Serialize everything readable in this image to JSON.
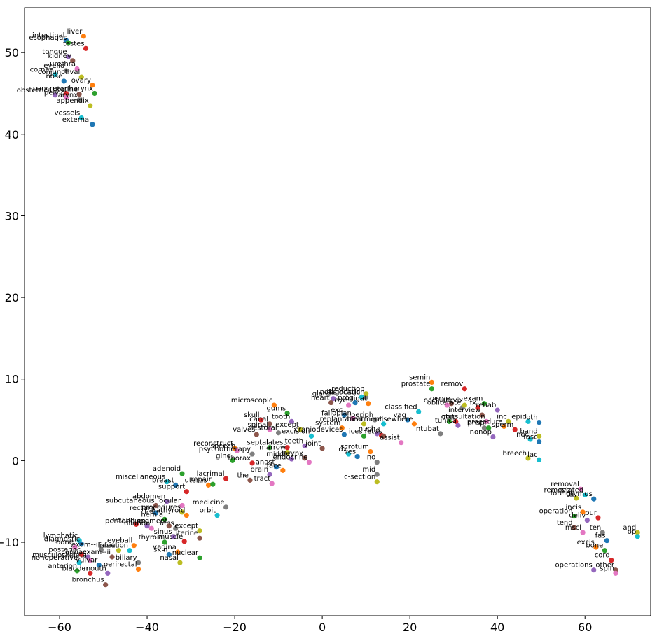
{
  "chart_data": {
    "type": "scatter",
    "title": "",
    "xlabel": "",
    "ylabel": "",
    "xlim": [
      -68,
      75
    ],
    "ylim": [
      -19,
      55.5
    ],
    "xticks": [
      -60,
      -40,
      -20,
      0,
      20,
      40,
      60
    ],
    "yticks": [
      -10,
      0,
      10,
      20,
      30,
      40,
      50
    ],
    "xtick_labels": [
      "−60",
      "−40",
      "−20",
      "0",
      "20",
      "40",
      "60"
    ],
    "ytick_labels": [
      "−10",
      "0",
      "10",
      "20",
      "30",
      "40",
      "50"
    ],
    "grid": false,
    "palette": [
      "#1f77b4",
      "#ff7f0e",
      "#2ca02c",
      "#d62728",
      "#9467bd",
      "#8c564b",
      "#e377c2",
      "#7f7f7f",
      "#bcbd22",
      "#17becf"
    ],
    "points": [
      {
        "label": "intestinal",
        "x": -58.5,
        "y": 51.5
      },
      {
        "label": "liver",
        "x": -54.5,
        "y": 52.0
      },
      {
        "label": "esophagus",
        "x": -58.0,
        "y": 51.2
      },
      {
        "label": "testes",
        "x": -54.0,
        "y": 50.5
      },
      {
        "label": "tongue",
        "x": -58.0,
        "y": 49.5
      },
      {
        "label": "kidney",
        "x": -57.0,
        "y": 49.0
      },
      {
        "label": "urethra",
        "x": -56.0,
        "y": 48.0
      },
      {
        "label": "eyelid",
        "x": -58.5,
        "y": 47.8
      },
      {
        "label": "conjunctival",
        "x": -55.0,
        "y": 47.0
      },
      {
        "label": "cornea",
        "x": -61.0,
        "y": 47.3
      },
      {
        "label": "nose",
        "x": -59.0,
        "y": 46.5
      },
      {
        "label": "ovary",
        "x": -52.5,
        "y": 46.0
      },
      {
        "label": "pharynx",
        "x": -52.0,
        "y": 45.0
      },
      {
        "label": "pancreas",
        "x": -58.5,
        "y": 45.0
      },
      {
        "label": "obstetrical",
        "x": -61.0,
        "y": 44.8
      },
      {
        "label": "uterine",
        "x": -55.5,
        "y": 44.9
      },
      {
        "label": "pelvic",
        "x": -58.5,
        "y": 44.5
      },
      {
        "label": "larynx",
        "x": -55.5,
        "y": 44.2
      },
      {
        "label": "appendix",
        "x": -53.0,
        "y": 43.5
      },
      {
        "label": "vessels",
        "x": -55.0,
        "y": 42.0
      },
      {
        "label": "external",
        "x": -52.5,
        "y": 41.2
      },
      {
        "label": "semin",
        "x": 25.0,
        "y": 9.6
      },
      {
        "label": "prostate",
        "x": 25.0,
        "y": 8.8
      },
      {
        "label": "remov",
        "x": 32.5,
        "y": 8.8
      },
      {
        "label": "gland",
        "x": 2.5,
        "y": 7.6
      },
      {
        "label": "heart",
        "x": 2.0,
        "y": 7.1
      },
      {
        "label": "eye",
        "x": 6.0,
        "y": 6.8
      },
      {
        "label": "dislocation",
        "x": 10.0,
        "y": 7.8
      },
      {
        "label": "reduction",
        "x": 10.0,
        "y": 8.2
      },
      {
        "label": "ndiagnostic",
        "x": 9.0,
        "y": 7.8
      },
      {
        "label": "prog",
        "x": 7.5,
        "y": 7.1
      },
      {
        "label": "irrigat",
        "x": 10.5,
        "y": 7.0
      },
      {
        "label": "exam",
        "x": 37.0,
        "y": 7.0
      },
      {
        "label": "fx",
        "x": 35.5,
        "y": 6.5
      },
      {
        "label": "rehab",
        "x": 40.0,
        "y": 6.2
      },
      {
        "label": "nerve",
        "x": 29.5,
        "y": 7.0
      },
      {
        "label": "occlus",
        "x": 28.5,
        "y": 6.8
      },
      {
        "label": "obliterate",
        "x": 32.0,
        "y": 6.5
      },
      {
        "label": "cervix",
        "x": 32.5,
        "y": 6.8
      },
      {
        "label": "classified",
        "x": 22.0,
        "y": 6.0
      },
      {
        "label": "exc",
        "x": 5.0,
        "y": 5.6
      },
      {
        "label": "microscopic",
        "x": -11.0,
        "y": 6.8
      },
      {
        "label": "gums",
        "x": -8.0,
        "y": 5.8
      },
      {
        "label": "skull",
        "x": -14.0,
        "y": 5.0
      },
      {
        "label": "tooth",
        "x": -7.0,
        "y": 4.8
      },
      {
        "label": "canal",
        "x": -12.0,
        "y": 4.5
      },
      {
        "label": "fallopian",
        "x": 7.0,
        "y": 5.2
      },
      {
        "label": "periph",
        "x": 12.0,
        "y": 5.0
      },
      {
        "label": "replantation",
        "x": 9.5,
        "y": 4.5
      },
      {
        "label": "treatment",
        "x": 14.0,
        "y": 4.5
      },
      {
        "label": "vag",
        "x": 19.5,
        "y": 5.0
      },
      {
        "label": "elsewhere",
        "x": 21.0,
        "y": 4.5
      },
      {
        "label": "of",
        "x": 29.0,
        "y": 4.8
      },
      {
        "label": "pt",
        "x": 30.5,
        "y": 4.8
      },
      {
        "label": "tunica",
        "x": 31.0,
        "y": 4.3
      },
      {
        "label": "interview",
        "x": 36.5,
        "y": 5.6
      },
      {
        "label": "consultation",
        "x": 37.5,
        "y": 4.8
      },
      {
        "label": "proc",
        "x": 37.0,
        "y": 4.0
      },
      {
        "label": "inc",
        "x": 42.5,
        "y": 4.8
      },
      {
        "label": "epid",
        "x": 47.0,
        "y": 4.8
      },
      {
        "label": "oth",
        "x": 49.5,
        "y": 4.7
      },
      {
        "label": "procedure",
        "x": 41.5,
        "y": 4.2
      },
      {
        "label": "spr",
        "x": 38.0,
        "y": 4.0
      },
      {
        "label": "sperm",
        "x": 44.0,
        "y": 3.8
      },
      {
        "label": "nonop",
        "x": 39.0,
        "y": 2.9
      },
      {
        "label": "valves",
        "x": -15.0,
        "y": 3.2
      },
      {
        "label": "spinal",
        "x": -12.0,
        "y": 3.8
      },
      {
        "label": "restoral",
        "x": -10.0,
        "y": 3.4
      },
      {
        "label": "except",
        "x": -5.0,
        "y": 3.8
      },
      {
        "label": "excision",
        "x": -2.5,
        "y": 3.0
      },
      {
        "label": "craniodevices",
        "x": 5.0,
        "y": 3.2
      },
      {
        "label": "system",
        "x": 4.5,
        "y": 4.0
      },
      {
        "label": "ices",
        "x": 9.5,
        "y": 3.0
      },
      {
        "label": "field",
        "x": 13.5,
        "y": 3.1
      },
      {
        "label": "nuch",
        "x": 12.5,
        "y": 3.3
      },
      {
        "label": "fetus",
        "x": 14.0,
        "y": 3.0
      },
      {
        "label": "assist",
        "x": 18.0,
        "y": 2.2
      },
      {
        "label": "intubat",
        "x": 27.0,
        "y": 3.3
      },
      {
        "label": "band",
        "x": 49.5,
        "y": 3.0
      },
      {
        "label": "nec",
        "x": 47.5,
        "y": 2.6
      },
      {
        "label": "fasc",
        "x": 49.5,
        "y": 2.3
      },
      {
        "label": "reconstruct",
        "x": -20.0,
        "y": 1.5
      },
      {
        "label": "septal",
        "x": -12.0,
        "y": 1.6
      },
      {
        "label": "latest",
        "x": -8.0,
        "y": 1.6
      },
      {
        "label": "teeth",
        "x": -4.0,
        "y": 1.8
      },
      {
        "label": "joint",
        "x": 0.0,
        "y": 1.5
      },
      {
        "label": "speech",
        "x": -19.5,
        "y": 1.2
      },
      {
        "label": "psychotherapy",
        "x": -16.0,
        "y": 0.8
      },
      {
        "label": "marrow",
        "x": -8.0,
        "y": 1.0
      },
      {
        "label": "dx",
        "x": 6.0,
        "y": 0.8
      },
      {
        "label": "ves",
        "x": 8.0,
        "y": 0.5
      },
      {
        "label": "scrotum",
        "x": 11.0,
        "y": 1.1
      },
      {
        "label": "glnd",
        "x": -20.5,
        "y": 0.0
      },
      {
        "label": "thorax",
        "x": -16.0,
        "y": -0.3
      },
      {
        "label": "middle",
        "x": -7.0,
        "y": 0.2
      },
      {
        "label": "larynx",
        "x": -4.0,
        "y": 0.3
      },
      {
        "label": "endocrine",
        "x": -3.0,
        "y": -0.2
      },
      {
        "label": "no",
        "x": 12.5,
        "y": -0.2
      },
      {
        "label": "breech",
        "x": 47.0,
        "y": 0.3
      },
      {
        "label": "lac",
        "x": 49.5,
        "y": 0.1
      },
      {
        "label": "anast",
        "x": -10.5,
        "y": -0.8
      },
      {
        "label": "face",
        "x": -9.0,
        "y": -1.2
      },
      {
        "label": "adenoid",
        "x": -32.0,
        "y": -1.6
      },
      {
        "label": "lacrimal",
        "x": -22.0,
        "y": -2.2
      },
      {
        "label": "brain",
        "x": -12.0,
        "y": -1.7
      },
      {
        "label": "the",
        "x": -16.5,
        "y": -2.4
      },
      {
        "label": "tract",
        "x": -11.5,
        "y": -2.8
      },
      {
        "label": "mid",
        "x": 12.5,
        "y": -1.7
      },
      {
        "label": "c-section",
        "x": 12.5,
        "y": -2.6
      },
      {
        "label": "miscellaneous",
        "x": -35.5,
        "y": -2.6
      },
      {
        "label": "breast",
        "x": -33.5,
        "y": -3.0
      },
      {
        "label": "uterus",
        "x": -26.0,
        "y": -3.0
      },
      {
        "label": "repair",
        "x": -25.0,
        "y": -2.9
      },
      {
        "label": "support",
        "x": -31.0,
        "y": -3.8
      },
      {
        "label": "abdomen",
        "x": -35.5,
        "y": -5.0
      },
      {
        "label": "subcutaneous",
        "x": -38.0,
        "y": -5.5
      },
      {
        "label": "ocular",
        "x": -32.0,
        "y": -5.5
      },
      {
        "label": "medicine",
        "x": -22.0,
        "y": -5.7
      },
      {
        "label": "procedures",
        "x": -32.0,
        "y": -6.3
      },
      {
        "label": "orbit",
        "x": -24.0,
        "y": -6.7
      },
      {
        "label": "rectum",
        "x": -38.0,
        "y": -6.4
      },
      {
        "label": "parathyroid",
        "x": -31.0,
        "y": -6.7
      },
      {
        "label": "hernia",
        "x": -36.0,
        "y": -7.2
      },
      {
        "label": "region",
        "x": -42.5,
        "y": -7.8
      },
      {
        "label": "peritoneum",
        "x": -40.0,
        "y": -8.0
      },
      {
        "label": "segment",
        "x": -35.0,
        "y": -8.0
      },
      {
        "label": "dilation",
        "x": -39.0,
        "y": -8.3
      },
      {
        "label": "lens",
        "x": -33.5,
        "y": -8.3
      },
      {
        "label": "except",
        "x": -28.0,
        "y": -8.6
      },
      {
        "label": "lymphatic",
        "x": -55.5,
        "y": -9.8
      },
      {
        "label": "diagnostic",
        "x": -55.0,
        "y": -10.2
      },
      {
        "label": "eyeball",
        "x": -43.0,
        "y": -10.4
      },
      {
        "label": "thyroid",
        "x": -36.0,
        "y": -10.0
      },
      {
        "label": "muscle",
        "x": -31.5,
        "y": -9.9
      },
      {
        "label": "sinus",
        "x": -34.0,
        "y": -9.3
      },
      {
        "label": "uterine",
        "x": -28.0,
        "y": -9.5
      },
      {
        "label": "bone",
        "x": -56.5,
        "y": -10.6
      },
      {
        "label": "exam--ii",
        "x": -50.5,
        "y": -10.9
      },
      {
        "label": "facial",
        "x": -46.5,
        "y": -11.0
      },
      {
        "label": "infection",
        "x": -44.0,
        "y": -11.0
      },
      {
        "label": "skin",
        "x": -35.0,
        "y": -11.5
      },
      {
        "label": "vagina",
        "x": -33.0,
        "y": -11.2
      },
      {
        "label": "nuclear",
        "x": -28.0,
        "y": -11.9
      },
      {
        "label": "posterior",
        "x": -55.0,
        "y": -11.5
      },
      {
        "label": "cardiac",
        "x": -53.5,
        "y": -11.8
      },
      {
        "label": "exam--ii",
        "x": -48.0,
        "y": -11.8
      },
      {
        "label": "musculoskeletal",
        "x": -53.0,
        "y": -12.2
      },
      {
        "label": "biliary",
        "x": -42.0,
        "y": -12.5
      },
      {
        "label": "nasal",
        "x": -32.5,
        "y": -12.5
      },
      {
        "label": "nonoperative",
        "x": -55.5,
        "y": -12.5
      },
      {
        "label": "vulvar",
        "x": -51.0,
        "y": -12.8
      },
      {
        "label": "perirectal",
        "x": -42.0,
        "y": -13.3
      },
      {
        "label": "anterior",
        "x": -56.0,
        "y": -13.5
      },
      {
        "label": "bladder",
        "x": -53.0,
        "y": -13.8
      },
      {
        "label": "mouth",
        "x": -49.0,
        "y": -13.8
      },
      {
        "label": "bronchus",
        "x": -49.5,
        "y": -15.2
      },
      {
        "label": "removal",
        "x": 59.0,
        "y": -3.5
      },
      {
        "label": "remove",
        "x": 57.0,
        "y": -4.2
      },
      {
        "label": "foreign",
        "x": 58.0,
        "y": -4.6
      },
      {
        "label": "related",
        "x": 60.0,
        "y": -4.2
      },
      {
        "label": "thymus",
        "x": 62.0,
        "y": -4.7
      },
      {
        "label": "incis",
        "x": 59.5,
        "y": -6.3
      },
      {
        "label": "operation",
        "x": 57.5,
        "y": -6.8
      },
      {
        "label": "bur",
        "x": 63.0,
        "y": -7.0
      },
      {
        "label": "deliv",
        "x": 60.5,
        "y": -7.3
      },
      {
        "label": "tend",
        "x": 57.5,
        "y": -8.2
      },
      {
        "label": "mscl",
        "x": 59.5,
        "y": -8.8
      },
      {
        "label": "ten",
        "x": 64.0,
        "y": -8.8
      },
      {
        "label": "and",
        "x": 72.0,
        "y": -8.8
      },
      {
        "label": "op",
        "x": 72.0,
        "y": -9.3
      },
      {
        "label": "fas",
        "x": 65.0,
        "y": -9.8
      },
      {
        "label": "excis",
        "x": 62.5,
        "y": -10.6
      },
      {
        "label": "bone",
        "x": 64.5,
        "y": -11.0
      },
      {
        "label": "cord",
        "x": 66.0,
        "y": -12.2
      },
      {
        "label": "operations",
        "x": 62.0,
        "y": -13.4
      },
      {
        "label": "other",
        "x": 67.0,
        "y": -13.4
      },
      {
        "label": "spin",
        "x": 67.0,
        "y": -13.8
      }
    ]
  }
}
